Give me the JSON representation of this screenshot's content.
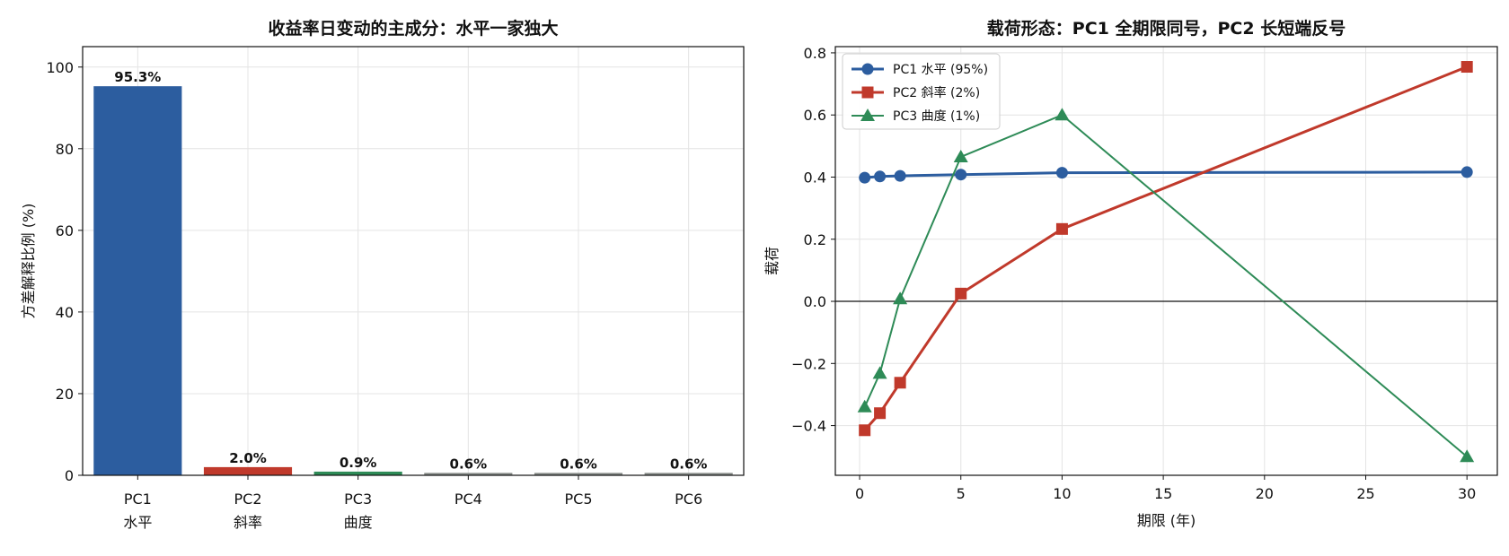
{
  "chart_data": [
    {
      "type": "bar",
      "title": "收益率日变动的主成分：水平一家独大",
      "xlabel": "",
      "ylabel": "方差解释比例 (%)",
      "ylim": [
        0,
        105
      ],
      "yticks": [
        0,
        20,
        40,
        60,
        80,
        100
      ],
      "grid": true,
      "categories": [
        "PC1\n水平",
        "PC2\n斜率",
        "PC3\n曲度",
        "PC4",
        "PC5",
        "PC6"
      ],
      "values": [
        95.3,
        2.0,
        0.9,
        0.6,
        0.6,
        0.6
      ],
      "data_labels": [
        "95.3%",
        "2.0%",
        "0.9%",
        "0.6%",
        "0.6%",
        "0.6%"
      ],
      "colors": [
        "#2c5d9f",
        "#c0392b",
        "#2e8b57",
        "#8a8f8c",
        "#8a8f8c",
        "#8a8f8c"
      ]
    },
    {
      "type": "line",
      "title": "载荷形态：PC1 全期限同号，PC2 长短端反号",
      "xlabel": "期限 (年)",
      "ylabel": "载荷",
      "xlim": [
        -1.2,
        31.5
      ],
      "ylim": [
        -0.56,
        0.82
      ],
      "xticks": [
        0,
        5,
        10,
        15,
        20,
        25,
        30
      ],
      "yticks": [
        -0.4,
        -0.2,
        0.0,
        0.2,
        0.4,
        0.6,
        0.8
      ],
      "ytick_labels": [
        "−0.4",
        "−0.2",
        "0.0",
        "0.2",
        "0.4",
        "0.6",
        "0.8"
      ],
      "grid": true,
      "zero_line": true,
      "legend_position": "top-left",
      "x": [
        0.25,
        1,
        2,
        5,
        10,
        30
      ],
      "series": [
        {
          "name": "PC1 水平 (95%)",
          "values": [
            0.398,
            0.402,
            0.404,
            0.408,
            0.414,
            0.416
          ],
          "color": "#2c5d9f",
          "marker": "circle",
          "width": 3
        },
        {
          "name": "PC2 斜率 (2%)",
          "values": [
            -0.415,
            -0.36,
            -0.262,
            0.025,
            0.233,
            0.755
          ],
          "color": "#c0392b",
          "marker": "square",
          "width": 3
        },
        {
          "name": "PC3 曲度 (1%)",
          "values": [
            -0.34,
            -0.232,
            0.008,
            0.465,
            0.6,
            -0.5
          ],
          "color": "#2e8b57",
          "marker": "triangle",
          "width": 2
        }
      ]
    }
  ]
}
